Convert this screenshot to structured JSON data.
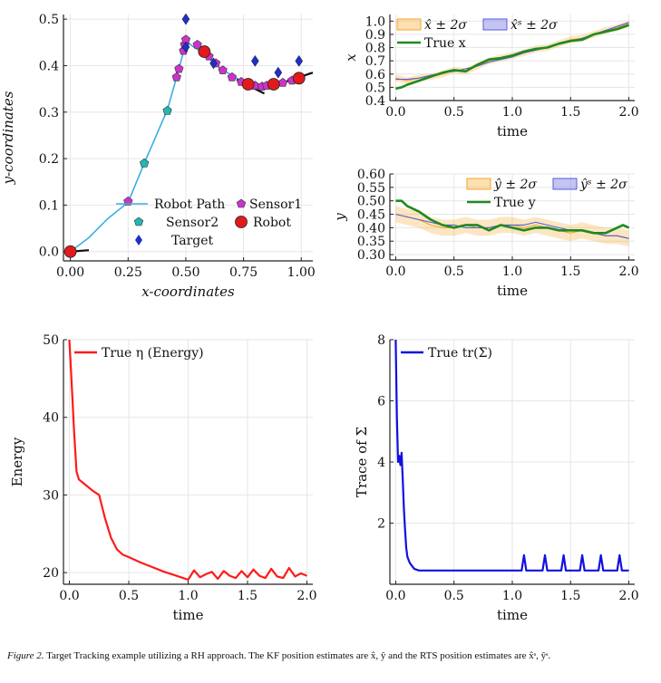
{
  "caption": {
    "label": "Figure 2.",
    "text": "Target Tracking example utilizing a RH approach. The KF position estimates are x̂, ŷ and the RTS position estimates are x̂ˢ, ŷˢ."
  },
  "chart_data": [
    {
      "type": "scatter",
      "id": "trajectory",
      "xlabel": "x-coordinates",
      "ylabel": "y-coordinates",
      "xlim": [
        -0.03,
        1.05
      ],
      "ylim": [
        -0.02,
        0.51
      ],
      "xticks": [
        "0.00",
        "0.25",
        "0.50",
        "0.75",
        "1.00"
      ],
      "xtick_values": [
        0,
        0.25,
        0.5,
        0.75,
        1.0
      ],
      "yticks": [
        "0.0",
        "0.1",
        "0.2",
        "0.3",
        "0.4",
        "0.5"
      ],
      "ytick_values": [
        0,
        0.1,
        0.2,
        0.3,
        0.4,
        0.5
      ],
      "legend": [
        "Robot Path",
        "Sensor1",
        "Sensor2",
        "Robot",
        "Target"
      ],
      "colors": {
        "path": "#3aaee3",
        "sensor1": "#cc33cc",
        "sensor2": "#20b8b0",
        "robot": "#e31a1c",
        "target": "#1f2fc8",
        "black": "#111111"
      },
      "robot_path": [
        [
          0.0,
          0.0
        ],
        [
          0.08,
          0.03
        ],
        [
          0.16,
          0.07
        ],
        [
          0.25,
          0.106
        ],
        [
          0.32,
          0.19
        ],
        [
          0.42,
          0.305
        ],
        [
          0.46,
          0.375
        ],
        [
          0.49,
          0.43
        ],
        [
          0.5,
          0.455
        ],
        [
          0.52,
          0.445
        ],
        [
          0.55,
          0.435
        ],
        [
          0.58,
          0.43
        ],
        [
          0.62,
          0.405
        ],
        [
          0.68,
          0.385
        ],
        [
          0.73,
          0.37
        ],
        [
          0.77,
          0.36
        ],
        [
          0.82,
          0.355
        ],
        [
          0.88,
          0.36
        ],
        [
          0.93,
          0.365
        ],
        [
          0.99,
          0.372
        ],
        [
          1.04,
          0.385
        ]
      ],
      "sensor1": [
        [
          0.25,
          0.108
        ],
        [
          0.46,
          0.375
        ],
        [
          0.47,
          0.393
        ],
        [
          0.49,
          0.432
        ],
        [
          0.495,
          0.445
        ],
        [
          0.5,
          0.456
        ],
        [
          0.55,
          0.445
        ],
        [
          0.6,
          0.42
        ],
        [
          0.63,
          0.405
        ],
        [
          0.66,
          0.39
        ],
        [
          0.7,
          0.375
        ],
        [
          0.74,
          0.365
        ],
        [
          0.78,
          0.358
        ],
        [
          0.8,
          0.357
        ],
        [
          0.83,
          0.355
        ],
        [
          0.85,
          0.357
        ],
        [
          0.89,
          0.36
        ],
        [
          0.92,
          0.363
        ],
        [
          0.96,
          0.368
        ]
      ],
      "sensor2": [
        [
          0.42,
          0.303
        ],
        [
          0.32,
          0.19
        ]
      ],
      "robot": [
        [
          0.0,
          0.0
        ],
        [
          0.58,
          0.43
        ],
        [
          0.77,
          0.36
        ],
        [
          0.88,
          0.36
        ],
        [
          0.99,
          0.373
        ]
      ],
      "target": [
        [
          0.5,
          0.5
        ],
        [
          0.62,
          0.405
        ],
        [
          0.8,
          0.41
        ],
        [
          0.9,
          0.385
        ],
        [
          0.99,
          0.41
        ],
        [
          0.5,
          0.44
        ]
      ],
      "black_segments": [
        [
          [
            0.0,
            0.0
          ],
          [
            0.08,
            0.003
          ]
        ],
        [
          [
            0.72,
            0.37
          ],
          [
            0.84,
            0.34
          ]
        ],
        [
          [
            0.93,
            0.365
          ],
          [
            1.05,
            0.385
          ]
        ]
      ]
    },
    {
      "type": "line",
      "id": "x-estimate",
      "xlabel": "time",
      "ylabel": "x",
      "xlim": [
        -0.05,
        2.05
      ],
      "ylim": [
        0.4,
        1.05
      ],
      "xticks": [
        "0.0",
        "0.5",
        "1.0",
        "1.5",
        "2.0"
      ],
      "xtick_values": [
        0,
        0.5,
        1.0,
        1.5,
        2.0
      ],
      "yticks": [
        "0.4",
        "0.5",
        "0.6",
        "0.7",
        "0.8",
        "0.9",
        "1.0"
      ],
      "ytick_values": [
        0.4,
        0.5,
        0.6,
        0.7,
        0.8,
        0.9,
        1.0
      ],
      "legend": [
        "x̂ ± 2σ",
        "x̂ˢ ± 2σ",
        "True x"
      ],
      "series": [
        {
          "name": "KF",
          "color": "#f5a623",
          "x": [
            0,
            0.1,
            0.2,
            0.3,
            0.4,
            0.5,
            0.6,
            0.7,
            0.8,
            0.9,
            1.0,
            1.1,
            1.2,
            1.3,
            1.4,
            1.5,
            1.6,
            1.7,
            1.8,
            1.9,
            2.0
          ],
          "values": [
            0.57,
            0.55,
            0.57,
            0.58,
            0.6,
            0.63,
            0.62,
            0.66,
            0.7,
            0.72,
            0.74,
            0.76,
            0.79,
            0.8,
            0.83,
            0.86,
            0.87,
            0.9,
            0.93,
            0.95,
            0.98
          ],
          "band": 0.025
        },
        {
          "name": "RTS",
          "color": "#5a5ae0",
          "x": [
            0,
            0.1,
            0.2,
            0.3,
            0.4,
            0.5,
            0.6,
            0.7,
            0.8,
            0.9,
            1.0,
            1.1,
            1.2,
            1.3,
            1.4,
            1.5,
            1.6,
            1.7,
            1.8,
            1.9,
            2.0
          ],
          "values": [
            0.56,
            0.56,
            0.57,
            0.59,
            0.61,
            0.62,
            0.64,
            0.66,
            0.69,
            0.71,
            0.73,
            0.76,
            0.78,
            0.8,
            0.83,
            0.85,
            0.87,
            0.9,
            0.93,
            0.96,
            0.99
          ]
        },
        {
          "name": "True",
          "color": "#1e8a1e",
          "x": [
            0,
            0.05,
            0.1,
            0.2,
            0.3,
            0.4,
            0.5,
            0.6,
            0.7,
            0.8,
            0.9,
            1.0,
            1.1,
            1.2,
            1.3,
            1.4,
            1.5,
            1.6,
            1.7,
            1.8,
            1.9,
            2.0
          ],
          "values": [
            0.49,
            0.5,
            0.52,
            0.55,
            0.58,
            0.61,
            0.63,
            0.62,
            0.67,
            0.71,
            0.72,
            0.74,
            0.77,
            0.79,
            0.8,
            0.83,
            0.85,
            0.86,
            0.9,
            0.92,
            0.94,
            0.97
          ]
        }
      ]
    },
    {
      "type": "line",
      "id": "y-estimate",
      "xlabel": "time",
      "ylabel": "y",
      "xlim": [
        -0.05,
        2.05
      ],
      "ylim": [
        0.28,
        0.6
      ],
      "xticks": [
        "0.0",
        "0.5",
        "1.0",
        "1.5",
        "2.0"
      ],
      "xtick_values": [
        0,
        0.5,
        1.0,
        1.5,
        2.0
      ],
      "yticks": [
        "0.30",
        "0.35",
        "0.40",
        "0.45",
        "0.50",
        "0.55",
        "0.60"
      ],
      "ytick_values": [
        0.3,
        0.35,
        0.4,
        0.45,
        0.5,
        0.55,
        0.6
      ],
      "legend": [
        "ŷ ± 2σ",
        "ŷˢ ± 2σ",
        "True y"
      ],
      "series": [
        {
          "name": "KF",
          "color": "#f5a623",
          "x": [
            0,
            0.1,
            0.2,
            0.3,
            0.4,
            0.5,
            0.6,
            0.7,
            0.8,
            0.9,
            1.0,
            1.1,
            1.2,
            1.3,
            1.4,
            1.5,
            1.6,
            1.7,
            1.8,
            1.9,
            2.0
          ],
          "values": [
            0.45,
            0.44,
            0.43,
            0.41,
            0.4,
            0.4,
            0.41,
            0.4,
            0.4,
            0.41,
            0.41,
            0.4,
            0.41,
            0.4,
            0.39,
            0.38,
            0.39,
            0.38,
            0.37,
            0.37,
            0.36
          ],
          "band": 0.03
        },
        {
          "name": "RTS",
          "color": "#5a5ae0",
          "x": [
            0,
            0.1,
            0.2,
            0.3,
            0.4,
            0.5,
            0.6,
            0.7,
            0.8,
            0.9,
            1.0,
            1.1,
            1.2,
            1.3,
            1.4,
            1.5,
            1.6,
            1.7,
            1.8,
            1.9,
            2.0
          ],
          "values": [
            0.45,
            0.44,
            0.43,
            0.42,
            0.41,
            0.41,
            0.4,
            0.4,
            0.4,
            0.41,
            0.41,
            0.41,
            0.42,
            0.41,
            0.4,
            0.39,
            0.39,
            0.38,
            0.37,
            0.37,
            0.36
          ]
        },
        {
          "name": "True",
          "color": "#1e8a1e",
          "x": [
            0,
            0.05,
            0.1,
            0.2,
            0.3,
            0.4,
            0.5,
            0.6,
            0.7,
            0.8,
            0.9,
            1.0,
            1.1,
            1.2,
            1.3,
            1.4,
            1.5,
            1.6,
            1.7,
            1.8,
            1.9,
            1.95,
            2.0
          ],
          "values": [
            0.5,
            0.5,
            0.48,
            0.46,
            0.43,
            0.41,
            0.4,
            0.41,
            0.41,
            0.39,
            0.41,
            0.4,
            0.39,
            0.4,
            0.4,
            0.39,
            0.39,
            0.39,
            0.38,
            0.38,
            0.4,
            0.41,
            0.4
          ]
        }
      ]
    },
    {
      "type": "line",
      "id": "energy",
      "xlabel": "time",
      "ylabel": "Energy",
      "xlim": [
        -0.05,
        2.05
      ],
      "ylim": [
        18.5,
        50
      ],
      "xticks": [
        "0.0",
        "0.5",
        "1.0",
        "1.5",
        "2.0"
      ],
      "xtick_values": [
        0,
        0.5,
        1.0,
        1.5,
        2.0
      ],
      "yticks": [
        "20",
        "30",
        "40",
        "50"
      ],
      "ytick_values": [
        20,
        30,
        40,
        50
      ],
      "legend": [
        "True η (Energy)"
      ],
      "series": [
        {
          "name": "True η (Energy)",
          "color": "#ff1a1a",
          "x": [
            0,
            0.02,
            0.04,
            0.06,
            0.08,
            0.12,
            0.16,
            0.2,
            0.25,
            0.3,
            0.35,
            0.4,
            0.45,
            0.5,
            0.6,
            0.7,
            0.8,
            0.9,
            1.0,
            1.05,
            1.1,
            1.15,
            1.2,
            1.25,
            1.3,
            1.35,
            1.4,
            1.45,
            1.5,
            1.55,
            1.6,
            1.65,
            1.7,
            1.75,
            1.8,
            1.85,
            1.9,
            1.95,
            2.0
          ],
          "values": [
            50,
            44,
            38,
            33,
            32,
            31.5,
            31,
            30.5,
            30,
            27,
            24.5,
            23,
            22.3,
            22,
            21.3,
            20.7,
            20.1,
            19.6,
            19.1,
            20.3,
            19.4,
            19.8,
            20.1,
            19.2,
            20.2,
            19.6,
            19.3,
            20.2,
            19.4,
            20.4,
            19.6,
            19.3,
            20.5,
            19.5,
            19.3,
            20.6,
            19.5,
            19.9,
            19.6
          ]
        }
      ]
    },
    {
      "type": "line",
      "id": "trace",
      "xlabel": "time",
      "ylabel": "Trace of Σ",
      "xlim": [
        -0.05,
        2.05
      ],
      "ylim": [
        0,
        8
      ],
      "xticks": [
        "0.0",
        "0.5",
        "1.0",
        "1.5",
        "2.0"
      ],
      "xtick_values": [
        0,
        0.5,
        1.0,
        1.5,
        2.0
      ],
      "yticks": [
        "2",
        "4",
        "6",
        "8"
      ],
      "ytick_values": [
        2,
        4,
        6,
        8
      ],
      "legend": [
        "True tr(Σ)"
      ],
      "series": [
        {
          "name": "True tr(Σ)",
          "color": "#1010e0",
          "x": [
            0,
            0.01,
            0.02,
            0.03,
            0.04,
            0.05,
            0.06,
            0.07,
            0.08,
            0.09,
            0.1,
            0.11,
            0.12,
            0.14,
            0.16,
            0.2,
            0.3,
            0.5,
            0.8,
            1.0,
            1.08,
            1.1,
            1.12,
            1.26,
            1.28,
            1.3,
            1.42,
            1.44,
            1.46,
            1.58,
            1.6,
            1.62,
            1.74,
            1.76,
            1.78,
            1.9,
            1.92,
            1.94,
            2.0
          ],
          "values": [
            8,
            5.5,
            4,
            4.2,
            3.9,
            4.3,
            3.5,
            2.5,
            1.8,
            1.2,
            0.9,
            0.8,
            0.7,
            0.6,
            0.5,
            0.45,
            0.45,
            0.45,
            0.45,
            0.45,
            0.45,
            0.95,
            0.45,
            0.45,
            0.95,
            0.45,
            0.45,
            0.95,
            0.45,
            0.45,
            0.95,
            0.45,
            0.45,
            0.95,
            0.45,
            0.45,
            0.95,
            0.45,
            0.45
          ]
        }
      ]
    }
  ]
}
